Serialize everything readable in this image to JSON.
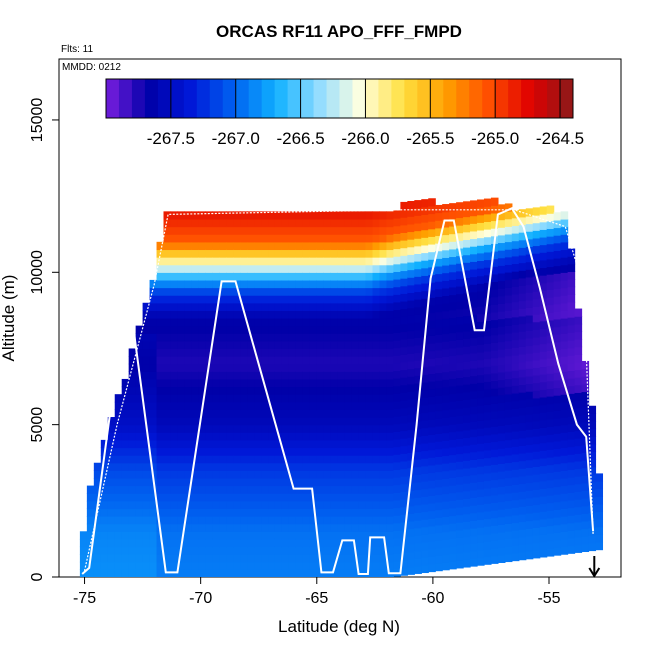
{
  "chart_data": {
    "type": "heatmap",
    "title": "ORCAS RF11 APO_FFF_FMPD",
    "note_flights": "Flts: 11",
    "note_date": "MMDD: 0212",
    "xlabel": "Latitude (deg N)",
    "ylabel": "Altitude (m)",
    "xlim": [
      -76.1,
      -51.9
    ],
    "ylim": [
      0,
      17000
    ],
    "x_ticks": [
      -75,
      -70,
      -65,
      -60,
      -55
    ],
    "y_ticks": [
      0,
      5000,
      10000,
      15000
    ],
    "colorbar": {
      "range": [
        -268.0,
        -264.4
      ],
      "ticks": [
        -267.5,
        -267.0,
        -266.5,
        -266.0,
        -265.5,
        -265.0,
        -264.5
      ],
      "tick_labels": [
        "-267.5",
        "-267.0",
        "-266.5",
        "-266.0",
        "-265.5",
        "-265.0",
        "-264.5"
      ],
      "colors": [
        "#7b1fe0",
        "#0000a8",
        "#0018d8",
        "#0060f0",
        "#10b0ff",
        "#90dcff",
        "#ffffe0",
        "#ffe040",
        "#ffa000",
        "#ff5000",
        "#e00000",
        "#8b1a1a"
      ]
    },
    "curtain": {
      "lat_start": -75.2,
      "lat_end": -52.8,
      "lat_step": 0.3,
      "alt_step": 250,
      "top_profile": [
        [
          -75.2,
          700
        ],
        [
          -74.8,
          2800
        ],
        [
          -74.0,
          4800
        ],
        [
          -73.3,
          6300
        ],
        [
          -72.6,
          8300
        ],
        [
          -71.9,
          10000
        ],
        [
          -71.6,
          11600
        ],
        [
          -71.5,
          11950
        ],
        [
          -61.5,
          11950
        ],
        [
          -61.4,
          12200
        ],
        [
          -56.6,
          12200
        ],
        [
          -56.4,
          11950
        ],
        [
          -54.2,
          11950
        ],
        [
          -53.9,
          9600
        ],
        [
          -53.6,
          7800
        ],
        [
          -53.3,
          6000
        ],
        [
          -53.0,
          4800
        ],
        [
          -52.9,
          3800
        ],
        [
          -52.8,
          2800
        ]
      ],
      "gradient_stops": [
        [
          0,
          -266.9
        ],
        [
          1500,
          -266.95
        ],
        [
          3500,
          -267.2
        ],
        [
          5000,
          -267.55
        ],
        [
          7000,
          -267.75
        ],
        [
          8500,
          -267.65
        ],
        [
          9300,
          -267.2
        ],
        [
          9800,
          -266.7
        ],
        [
          10200,
          -266.1
        ],
        [
          10600,
          -265.6
        ],
        [
          11000,
          -265.1
        ],
        [
          11500,
          -264.95
        ],
        [
          12000,
          -264.8
        ],
        [
          12300,
          -264.7
        ]
      ]
    },
    "flight_track": {
      "name": "",
      "points": [
        [
          -75.1,
          100
        ],
        [
          -74.8,
          300
        ],
        [
          -73.4,
          8200
        ],
        [
          -72.9,
          8200
        ],
        [
          -71.5,
          150
        ],
        [
          -71.0,
          150
        ],
        [
          -69.1,
          9700
        ],
        [
          -68.5,
          9700
        ],
        [
          -66.0,
          2900
        ],
        [
          -65.2,
          2900
        ],
        [
          -64.8,
          150
        ],
        [
          -64.3,
          150
        ],
        [
          -63.9,
          1200
        ],
        [
          -63.4,
          1200
        ],
        [
          -63.2,
          100
        ],
        [
          -62.8,
          100
        ],
        [
          -62.7,
          1300
        ],
        [
          -62.1,
          1300
        ],
        [
          -61.9,
          120
        ],
        [
          -61.4,
          120
        ],
        [
          -60.7,
          5000
        ],
        [
          -60.1,
          9800
        ],
        [
          -59.5,
          11700
        ],
        [
          -59.1,
          11700
        ],
        [
          -58.2,
          8100
        ],
        [
          -57.8,
          8100
        ],
        [
          -57.2,
          11900
        ],
        [
          -56.6,
          12100
        ],
        [
          -56.1,
          11500
        ],
        [
          -55.4,
          9500
        ],
        [
          -54.6,
          7000
        ],
        [
          -53.8,
          5000
        ],
        [
          -53.4,
          4600
        ],
        [
          -53.1,
          1500
        ]
      ]
    },
    "secondary_track": {
      "points": [
        [
          -75.0,
          200
        ],
        [
          -73.6,
          5000
        ],
        [
          -72.0,
          9600
        ],
        [
          -71.4,
          11900
        ],
        [
          -61.4,
          12050
        ],
        [
          -56.5,
          12050
        ],
        [
          -54.3,
          11500
        ],
        [
          -53.5,
          9500
        ],
        [
          -53.1,
          1400
        ]
      ]
    },
    "marker": {
      "lat": -53.05,
      "label": "end-of-flight-arrow"
    }
  }
}
